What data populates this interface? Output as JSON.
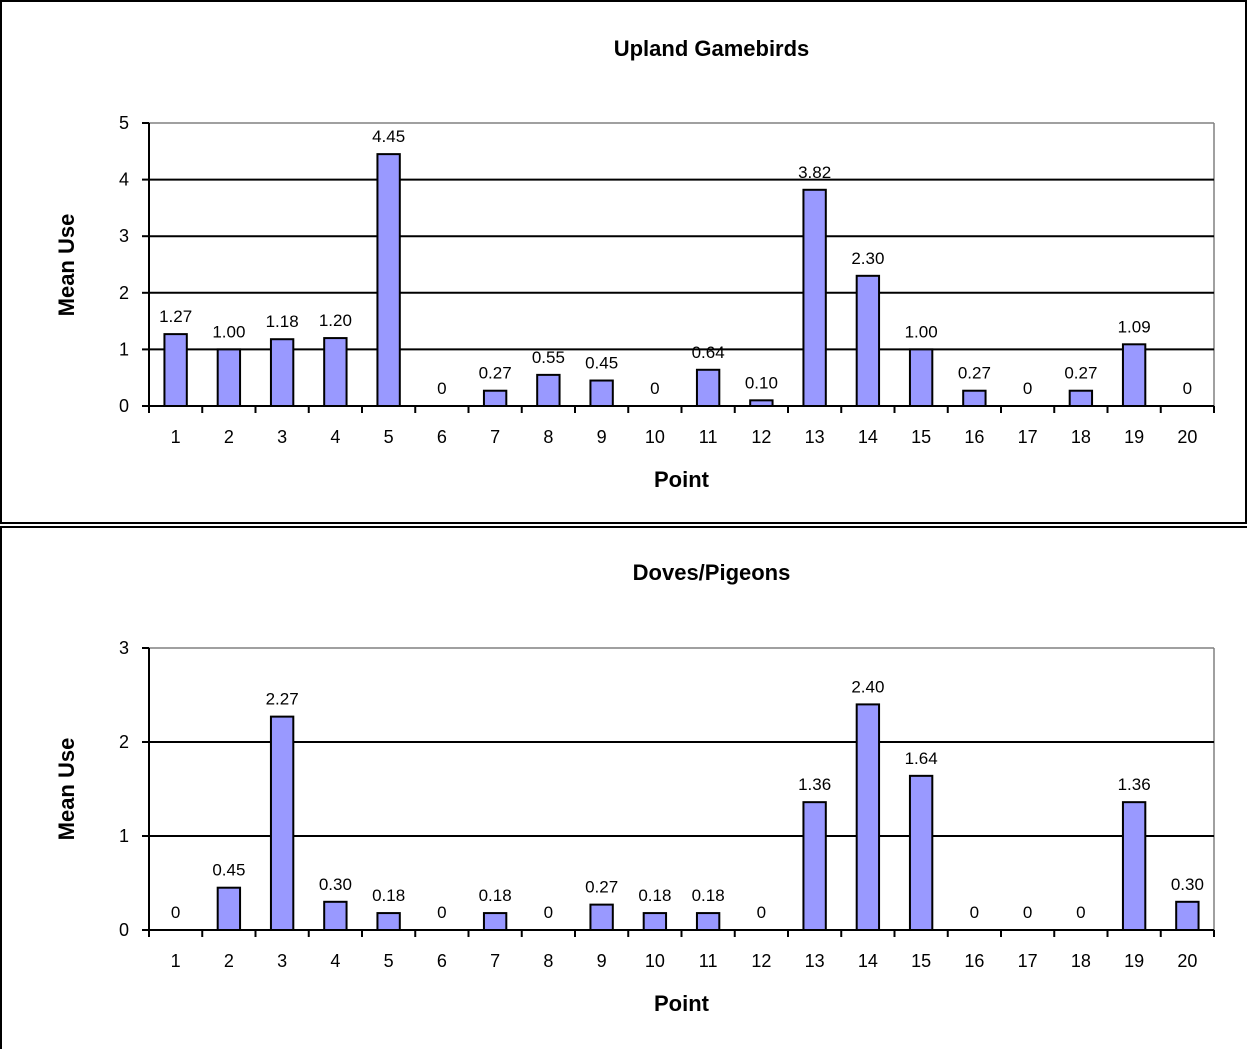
{
  "chart_data": [
    {
      "type": "bar",
      "title": "Upland Gamebirds",
      "xlabel": "Point",
      "ylabel": "Mean Use",
      "categories": [
        "1",
        "2",
        "3",
        "4",
        "5",
        "6",
        "7",
        "8",
        "9",
        "10",
        "11",
        "12",
        "13",
        "14",
        "15",
        "16",
        "17",
        "18",
        "19",
        "20"
      ],
      "values": [
        1.27,
        1.0,
        1.18,
        1.2,
        4.45,
        0,
        0.27,
        0.55,
        0.45,
        0,
        0.64,
        0.1,
        3.82,
        2.3,
        1.0,
        0.27,
        0,
        0.27,
        1.09,
        0
      ],
      "data_labels": [
        "1.27",
        "1.00",
        "1.18",
        "1.20",
        "4.45",
        "0",
        "0.27",
        "0.55",
        "0.45",
        "0",
        "0.64",
        "0.10",
        "3.82",
        "2.30",
        "1.00",
        "0.27",
        "0",
        "0.27",
        "1.09",
        "0"
      ],
      "ylim": [
        0,
        5
      ],
      "yticks": [
        "0",
        "1",
        "2",
        "3",
        "4",
        "5"
      ],
      "grid": true,
      "bar_color": "#9999ff",
      "grid_color": "#000000"
    },
    {
      "type": "bar",
      "title": "Doves/Pigeons",
      "xlabel": "Point",
      "ylabel": "Mean Use",
      "categories": [
        "1",
        "2",
        "3",
        "4",
        "5",
        "6",
        "7",
        "8",
        "9",
        "10",
        "11",
        "12",
        "13",
        "14",
        "15",
        "16",
        "17",
        "18",
        "19",
        "20"
      ],
      "values": [
        0,
        0.45,
        2.27,
        0.3,
        0.18,
        0,
        0.18,
        0,
        0.27,
        0.18,
        0.18,
        0,
        1.36,
        2.4,
        1.64,
        0,
        0,
        0,
        1.36,
        0.3
      ],
      "data_labels": [
        "0",
        "0.45",
        "2.27",
        "0.30",
        "0.18",
        "0",
        "0.18",
        "0",
        "0.27",
        "0.18",
        "0.18",
        "0",
        "1.36",
        "2.40",
        "1.64",
        "0",
        "0",
        "0",
        "1.36",
        "0.30"
      ],
      "ylim": [
        0,
        3
      ],
      "yticks": [
        "0",
        "1",
        "2",
        "3"
      ],
      "grid": true,
      "bar_color": "#9999ff",
      "grid_color": "#000000"
    }
  ]
}
